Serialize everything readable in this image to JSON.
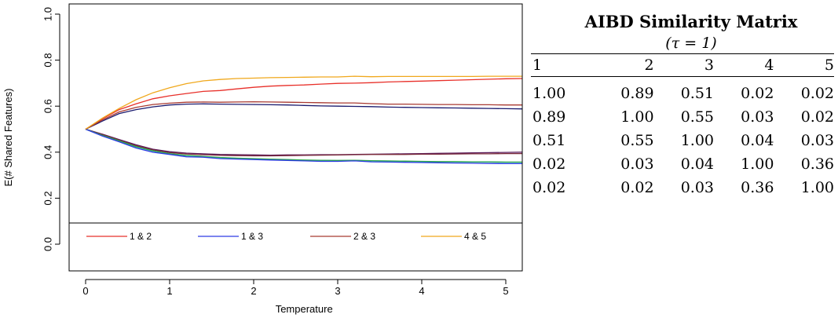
{
  "chart_data": {
    "type": "line",
    "xlabel": "Temperature",
    "ylabel": "E(# Shared Features)",
    "xlim": [
      0,
      5.2
    ],
    "ylim": [
      0,
      1.0
    ],
    "x_ticks": [
      "0",
      "1",
      "2",
      "3",
      "4",
      "5"
    ],
    "y_ticks": [
      "0.0",
      "0.2",
      "0.4",
      "0.6",
      "0.8",
      "1.0"
    ],
    "grid": false,
    "legend_position": "bottom",
    "x": [
      0,
      0.2,
      0.4,
      0.6,
      0.8,
      1.0,
      1.2,
      1.4,
      1.6,
      1.8,
      2.0,
      2.2,
      2.4,
      2.6,
      2.8,
      3.0,
      3.2,
      3.4,
      3.6,
      3.8,
      4.0,
      4.2,
      4.4,
      4.6,
      4.8,
      5.0,
      5.2
    ],
    "series": [
      {
        "name": "1 & 2",
        "color": "#e8302a",
        "in_legend": true,
        "values": [
          0.5,
          0.545,
          0.585,
          0.61,
          0.632,
          0.645,
          0.655,
          0.664,
          0.668,
          0.675,
          0.682,
          0.687,
          0.69,
          0.692,
          0.696,
          0.699,
          0.7,
          0.702,
          0.705,
          0.707,
          0.709,
          0.711,
          0.713,
          0.715,
          0.717,
          0.719,
          0.72
        ]
      },
      {
        "name": "1 & 3",
        "color": "#2d3be3",
        "in_legend": true,
        "values": [
          0.5,
          0.47,
          0.445,
          0.418,
          0.4,
          0.39,
          0.38,
          0.378,
          0.372,
          0.37,
          0.368,
          0.366,
          0.364,
          0.362,
          0.36,
          0.36,
          0.362,
          0.358,
          0.357,
          0.356,
          0.355,
          0.354,
          0.353,
          0.352,
          0.351,
          0.35,
          0.35
        ]
      },
      {
        "name": "2 & 3",
        "color": "#a83a32",
        "in_legend": true,
        "values": [
          0.5,
          0.54,
          0.575,
          0.595,
          0.607,
          0.613,
          0.617,
          0.618,
          0.617,
          0.618,
          0.619,
          0.618,
          0.617,
          0.616,
          0.615,
          0.614,
          0.614,
          0.611,
          0.609,
          0.609,
          0.608,
          0.607,
          0.607,
          0.606,
          0.606,
          0.605,
          0.605
        ]
      },
      {
        "name": "4 & 5",
        "color": "#f0a81c",
        "in_legend": true,
        "values": [
          0.5,
          0.548,
          0.59,
          0.628,
          0.658,
          0.68,
          0.698,
          0.71,
          0.716,
          0.72,
          0.722,
          0.724,
          0.725,
          0.726,
          0.727,
          0.727,
          0.73,
          0.728,
          0.729,
          0.729,
          0.729,
          0.729,
          0.729,
          0.729,
          0.73,
          0.73,
          0.73
        ]
      },
      {
        "name": "",
        "color": "#1a1a6e",
        "in_legend": false,
        "values": [
          0.5,
          0.535,
          0.568,
          0.585,
          0.597,
          0.605,
          0.609,
          0.61,
          0.609,
          0.608,
          0.607,
          0.606,
          0.605,
          0.603,
          0.601,
          0.6,
          0.599,
          0.598,
          0.596,
          0.595,
          0.594,
          0.593,
          0.592,
          0.591,
          0.59,
          0.589,
          0.588
        ]
      },
      {
        "name": "",
        "color": "#5a1a5a",
        "in_legend": false,
        "values": [
          0.5,
          0.478,
          0.455,
          0.432,
          0.413,
          0.402,
          0.396,
          0.393,
          0.39,
          0.389,
          0.388,
          0.387,
          0.388,
          0.388,
          0.389,
          0.389,
          0.39,
          0.391,
          0.392,
          0.393,
          0.394,
          0.395,
          0.396,
          0.397,
          0.398,
          0.399,
          0.4
        ]
      },
      {
        "name": "",
        "color": "#7a2a3a",
        "in_legend": false,
        "values": [
          0.5,
          0.476,
          0.452,
          0.428,
          0.41,
          0.398,
          0.392,
          0.389,
          0.386,
          0.385,
          0.384,
          0.384,
          0.385,
          0.386,
          0.387,
          0.388,
          0.389,
          0.39,
          0.39,
          0.39,
          0.391,
          0.391,
          0.392,
          0.393,
          0.393,
          0.394,
          0.394
        ]
      },
      {
        "name": "",
        "color": "#34b8c8",
        "in_legend": false,
        "values": [
          0.5,
          0.472,
          0.448,
          0.423,
          0.405,
          0.393,
          0.385,
          0.381,
          0.376,
          0.373,
          0.371,
          0.369,
          0.367,
          0.365,
          0.364,
          0.363,
          0.364,
          0.362,
          0.361,
          0.36,
          0.359,
          0.358,
          0.358,
          0.357,
          0.357,
          0.356,
          0.356
        ]
      },
      {
        "name": "",
        "color": "#2fa84a",
        "in_legend": false,
        "values": [
          0.5,
          0.473,
          0.449,
          0.424,
          0.406,
          0.394,
          0.386,
          0.382,
          0.377,
          0.374,
          0.372,
          0.37,
          0.368,
          0.366,
          0.365,
          0.364,
          0.365,
          0.363,
          0.362,
          0.361,
          0.36,
          0.359,
          0.359,
          0.358,
          0.358,
          0.357,
          0.357
        ]
      }
    ]
  },
  "matrix": {
    "title": "AIBD Similarity Matrix",
    "subtitle": "(τ = 1)",
    "headers": [
      "1",
      "2",
      "3",
      "4",
      "5"
    ],
    "rows": [
      [
        "1.00",
        "0.89",
        "0.51",
        "0.02",
        "0.02"
      ],
      [
        "0.89",
        "1.00",
        "0.55",
        "0.03",
        "0.02"
      ],
      [
        "0.51",
        "0.55",
        "1.00",
        "0.04",
        "0.03"
      ],
      [
        "0.02",
        "0.03",
        "0.04",
        "1.00",
        "0.36"
      ],
      [
        "0.02",
        "0.02",
        "0.03",
        "0.36",
        "1.00"
      ]
    ]
  }
}
